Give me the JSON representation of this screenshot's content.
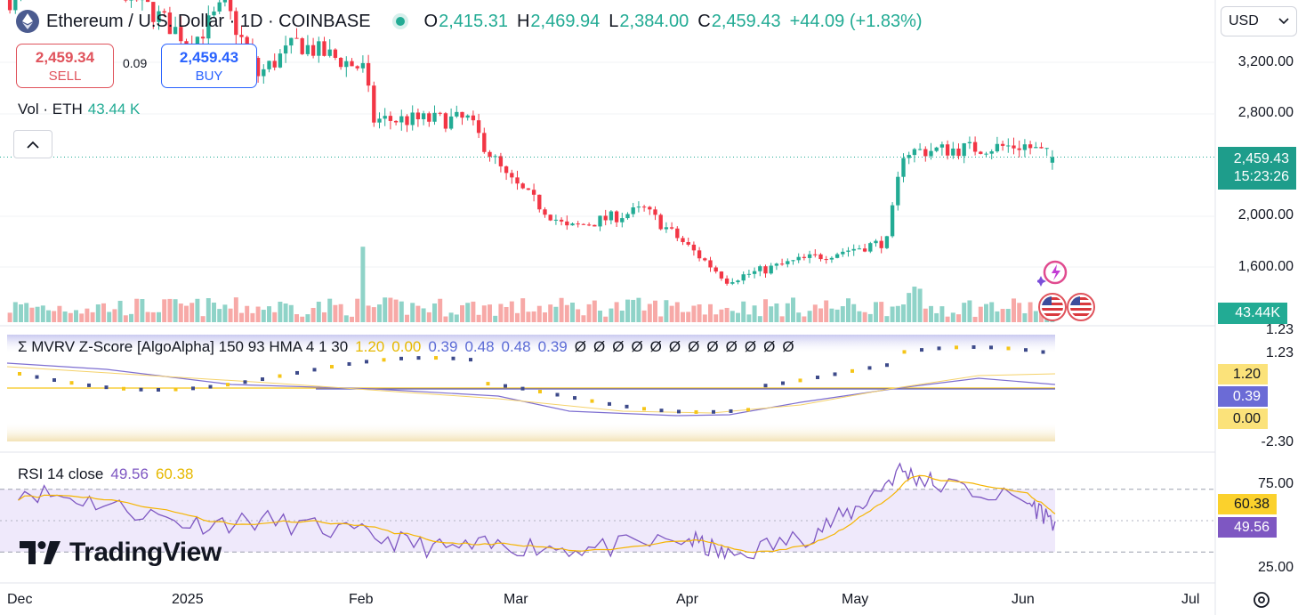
{
  "header": {
    "title": "Ethereum / U.S. Dollar · 1D · COINBASE",
    "open_label": "O",
    "open": "2,415.31",
    "high_label": "H",
    "high": "2,469.94",
    "low_label": "L",
    "low": "2,384.00",
    "close_label": "C",
    "close": "2,459.43",
    "change": "+44.09 (+1.83%)"
  },
  "trade": {
    "sell_price": "2,459.34",
    "sell_label": "SELL",
    "spread": "0.09",
    "buy_price": "2,459.43",
    "buy_label": "BUY"
  },
  "volume": {
    "label": "Vol · ETH",
    "value": "43.44 K",
    "tag": "43.44K"
  },
  "currency": {
    "selected": "USD"
  },
  "price_axis": {
    "ticks": [
      "3,200.00",
      "2,800.00",
      "2,000.00",
      "1,600.00"
    ],
    "last_price": "2,459.43",
    "countdown": "15:23:26"
  },
  "mvrv": {
    "label": "Σ MVRV Z-Score [AlgoAlpha] 150 93 HMA 4 1 30",
    "values": [
      "1.20",
      "0.00",
      "0.39",
      "0.48",
      "0.48",
      "0.39"
    ],
    "values_colors": [
      "#e6b800",
      "#e6b800",
      "#5b6bd6",
      "#5b6bd6",
      "#5b6bd6",
      "#5b6bd6"
    ],
    "empty_mark": "Ø",
    "empty_count": 12,
    "axis_ticks": [
      "1.23",
      "1.23",
      "-2.30"
    ],
    "tags": [
      "1.20",
      "0.39",
      "0.00"
    ]
  },
  "rsi": {
    "label": "RSI 14 close",
    "value": "49.56",
    "ma_value": "60.38",
    "axis_ticks": [
      "75.00",
      "25.00"
    ]
  },
  "time_axis": [
    "Dec",
    "2025",
    "Feb",
    "Mar",
    "Apr",
    "May",
    "Jun",
    "Jul"
  ],
  "brand": "TradingView",
  "colors": {
    "up": "#22ab94",
    "down": "#f23645",
    "vol_up": "#8fd3c8",
    "vol_down": "#f7a9a7",
    "mvrv_line": "#7e6fd1",
    "ma": "#f5b400",
    "rsi": "#7e57c2"
  },
  "chart_data": [
    {
      "type": "candlestick",
      "symbol": "ETHUSD",
      "interval": "1D",
      "ylim": [
        1400,
        3450
      ],
      "ohlc_anchor_points": [
        {
          "x": "2024-12-01",
          "y": 3700
        },
        {
          "x": "2024-12-16",
          "y": 3900
        },
        {
          "x": "2025-01-01",
          "y": 3350
        },
        {
          "x": "2025-01-07",
          "y": 3650
        },
        {
          "x": "2025-01-13",
          "y": 3100
        },
        {
          "x": "2025-01-20",
          "y": 3350
        },
        {
          "x": "2025-02-01",
          "y": 3150
        },
        {
          "x": "2025-02-03",
          "y": 2750
        },
        {
          "x": "2025-02-20",
          "y": 2750
        },
        {
          "x": "2025-02-27",
          "y": 2300
        },
        {
          "x": "2025-03-10",
          "y": 1900
        },
        {
          "x": "2025-03-24",
          "y": 2050
        },
        {
          "x": "2025-04-08",
          "y": 1500
        },
        {
          "x": "2025-04-21",
          "y": 1650
        },
        {
          "x": "2025-05-07",
          "y": 1800
        },
        {
          "x": "2025-05-10",
          "y": 2500
        },
        {
          "x": "2025-06-01",
          "y": 2550
        },
        {
          "x": "2025-06-06",
          "y": 2459.43
        }
      ],
      "last": {
        "open": 2415.31,
        "high": 2469.94,
        "low": 2384.0,
        "close": 2459.43
      }
    },
    {
      "type": "line",
      "name": "RSI 14 close",
      "ylim": [
        20,
        90
      ],
      "x": [
        "2024-12-01",
        "2024-12-15",
        "2025-01-01",
        "2025-01-15",
        "2025-02-01",
        "2025-02-15",
        "2025-03-01",
        "2025-03-15",
        "2025-04-01",
        "2025-04-08",
        "2025-04-22",
        "2025-05-01",
        "2025-05-09",
        "2025-05-15",
        "2025-06-01",
        "2025-06-06"
      ],
      "values": [
        70,
        62,
        48,
        50,
        41,
        32,
        34,
        32,
        38,
        27,
        40,
        57,
        82,
        74,
        62,
        49.56
      ]
    }
  ]
}
